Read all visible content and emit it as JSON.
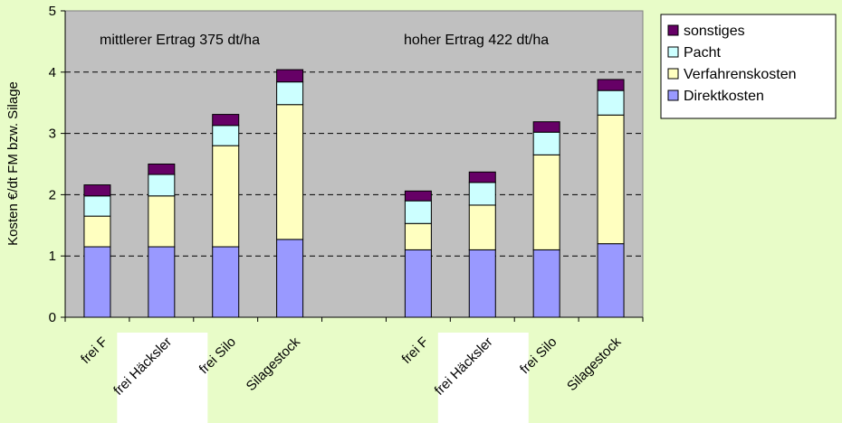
{
  "chart_data": {
    "type": "bar",
    "stacked": true,
    "ylabel": "Kosten €/dt FM bzw. Silage",
    "ylim": [
      0,
      5
    ],
    "yticks": [
      0,
      1,
      2,
      3,
      4,
      5
    ],
    "grid": "horizontal dashed",
    "legend_position": "right",
    "annotations": [
      "mittlerer Ertrag 375 dt/ha",
      "hoher Ertrag 422 dt/ha"
    ],
    "categories": [
      "frei Feld",
      "frei Häcksler",
      "frei Silo",
      "Silagestock",
      "",
      "frei Feld",
      "frei Häcksler",
      "frei Silo",
      "Silagestock"
    ],
    "tick_labels": [
      "frei F",
      "frei Häcksler",
      "frei Silo",
      "Silagestock",
      "",
      "frei F",
      "frei Häcksler",
      "frei Silo",
      "Silagestock"
    ],
    "series": [
      {
        "name": "Direktkosten",
        "color": "#9999ff",
        "values": [
          1.15,
          1.15,
          1.15,
          1.27,
          null,
          1.1,
          1.1,
          1.1,
          1.2
        ]
      },
      {
        "name": "Verfahrenskosten",
        "color": "#ffffc0",
        "values": [
          0.5,
          0.83,
          1.65,
          2.2,
          null,
          0.43,
          0.73,
          1.55,
          2.1
        ]
      },
      {
        "name": "Pacht",
        "color": "#ccffff",
        "values": [
          0.33,
          0.35,
          0.33,
          0.37,
          null,
          0.37,
          0.37,
          0.37,
          0.4
        ]
      },
      {
        "name": "sonstiges",
        "color": "#660066",
        "values": [
          0.18,
          0.17,
          0.18,
          0.2,
          null,
          0.16,
          0.17,
          0.17,
          0.18
        ]
      }
    ]
  }
}
